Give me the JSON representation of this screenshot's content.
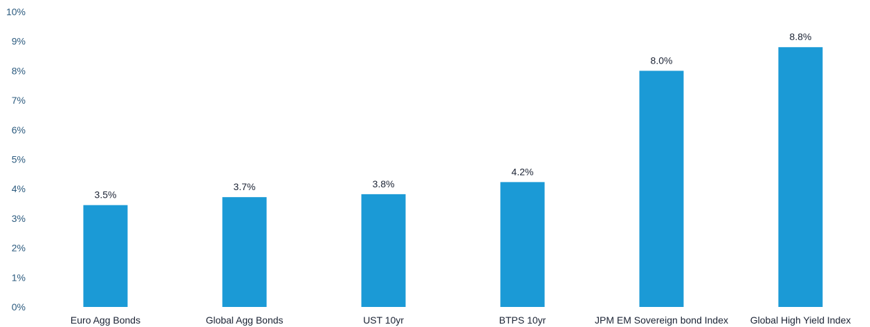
{
  "chart_data": {
    "type": "bar",
    "categories": [
      "Euro Agg Bonds",
      "Global Agg Bonds",
      "UST 10yr",
      "BTPS 10yr",
      "JPM EM Sovereign bond Index",
      "Global High Yield Index"
    ],
    "values": [
      3.45,
      3.72,
      3.82,
      4.23,
      8.0,
      8.8
    ],
    "data_labels": [
      "3.5%",
      "3.7%",
      "3.8%",
      "4.2%",
      "8.0%",
      "8.8%"
    ],
    "y_tick_labels": [
      "0%",
      "1%",
      "2%",
      "3%",
      "4%",
      "5%",
      "6%",
      "7%",
      "8%",
      "9%",
      "10%"
    ],
    "ylim": [
      0,
      10
    ],
    "y_unit": "%",
    "title": "",
    "xlabel": "",
    "ylabel": "",
    "grid": false,
    "legend": "none",
    "bar_color": "#1b9ad6"
  }
}
